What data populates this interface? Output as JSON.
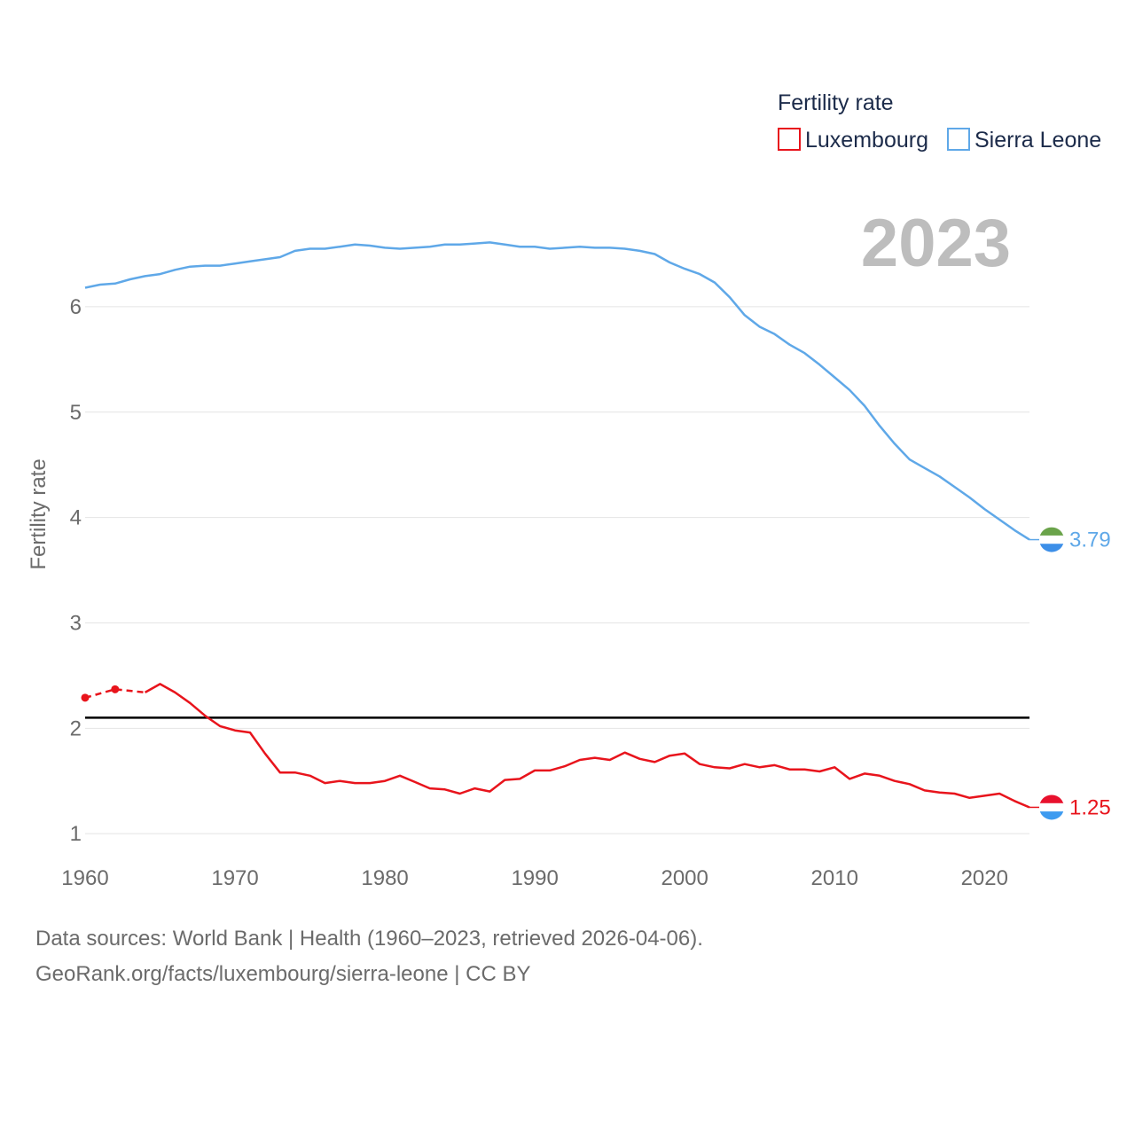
{
  "chart_data": {
    "type": "line",
    "title": "",
    "ylabel": "Fertility rate",
    "xlabel": "",
    "xlim": [
      1960,
      2023
    ],
    "ylim": [
      0.85,
      6.95
    ],
    "yticks": [
      1,
      2,
      3,
      4,
      5,
      6
    ],
    "xticks": [
      1960,
      1970,
      1980,
      1990,
      2000,
      2010,
      2020
    ],
    "grid": true,
    "legend": {
      "title": "Fertility rate",
      "placement": "top-right",
      "items": [
        "Luxembourg",
        "Sierra Leone"
      ]
    },
    "year_display": "2023",
    "reference_line": {
      "y": 2.1,
      "color": "#000000"
    },
    "series": [
      {
        "name": "Luxembourg",
        "color": "#e8141c",
        "end_label": "1.25",
        "sparse_points": [
          {
            "x": 1960,
            "y": 2.29
          },
          {
            "x": 1962,
            "y": 2.37
          },
          {
            "x": 1964,
            "y": 2.34
          }
        ],
        "x": [
          1964,
          1965,
          1966,
          1967,
          1968,
          1969,
          1970,
          1971,
          1972,
          1973,
          1974,
          1975,
          1976,
          1977,
          1978,
          1979,
          1980,
          1981,
          1982,
          1983,
          1984,
          1985,
          1986,
          1987,
          1988,
          1989,
          1990,
          1991,
          1992,
          1993,
          1994,
          1995,
          1996,
          1997,
          1998,
          1999,
          2000,
          2001,
          2002,
          2003,
          2004,
          2005,
          2006,
          2007,
          2008,
          2009,
          2010,
          2011,
          2012,
          2013,
          2014,
          2015,
          2016,
          2017,
          2018,
          2019,
          2020,
          2021,
          2022,
          2023
        ],
        "values": [
          2.34,
          2.42,
          2.34,
          2.24,
          2.12,
          2.02,
          1.98,
          1.96,
          1.76,
          1.58,
          1.58,
          1.55,
          1.48,
          1.5,
          1.48,
          1.48,
          1.5,
          1.55,
          1.49,
          1.43,
          1.42,
          1.38,
          1.43,
          1.4,
          1.51,
          1.52,
          1.6,
          1.6,
          1.64,
          1.7,
          1.72,
          1.7,
          1.77,
          1.71,
          1.68,
          1.74,
          1.76,
          1.66,
          1.63,
          1.62,
          1.66,
          1.63,
          1.65,
          1.61,
          1.61,
          1.59,
          1.63,
          1.52,
          1.57,
          1.55,
          1.5,
          1.47,
          1.41,
          1.39,
          1.38,
          1.34,
          1.36,
          1.38,
          1.31,
          1.25
        ]
      },
      {
        "name": "Sierra Leone",
        "color": "#5fa8e8",
        "end_label": "3.79",
        "x": [
          1960,
          1961,
          1962,
          1963,
          1964,
          1965,
          1966,
          1967,
          1968,
          1969,
          1970,
          1971,
          1972,
          1973,
          1974,
          1975,
          1976,
          1977,
          1978,
          1979,
          1980,
          1981,
          1982,
          1983,
          1984,
          1985,
          1986,
          1987,
          1988,
          1989,
          1990,
          1991,
          1992,
          1993,
          1994,
          1995,
          1996,
          1997,
          1998,
          1999,
          2000,
          2001,
          2002,
          2003,
          2004,
          2005,
          2006,
          2007,
          2008,
          2009,
          2010,
          2011,
          2012,
          2013,
          2014,
          2015,
          2016,
          2017,
          2018,
          2019,
          2020,
          2021,
          2022,
          2023
        ],
        "values": [
          6.18,
          6.21,
          6.22,
          6.26,
          6.29,
          6.31,
          6.35,
          6.38,
          6.39,
          6.39,
          6.41,
          6.43,
          6.45,
          6.47,
          6.53,
          6.55,
          6.55,
          6.57,
          6.59,
          6.58,
          6.56,
          6.55,
          6.56,
          6.57,
          6.59,
          6.59,
          6.6,
          6.61,
          6.59,
          6.57,
          6.57,
          6.55,
          6.56,
          6.57,
          6.56,
          6.56,
          6.55,
          6.53,
          6.5,
          6.42,
          6.36,
          6.31,
          6.23,
          6.09,
          5.92,
          5.81,
          5.74,
          5.64,
          5.56,
          5.45,
          5.33,
          5.21,
          5.06,
          4.87,
          4.7,
          4.55,
          4.47,
          4.39,
          4.29,
          4.19,
          4.08,
          3.98,
          3.88,
          3.79
        ]
      }
    ]
  },
  "source": {
    "line1": "Data sources: World Bank | Health (1960–2023, retrieved 2026-04-06).",
    "line2": "GeoRank.org/facts/luxembourg/sierra-leone | CC BY"
  }
}
